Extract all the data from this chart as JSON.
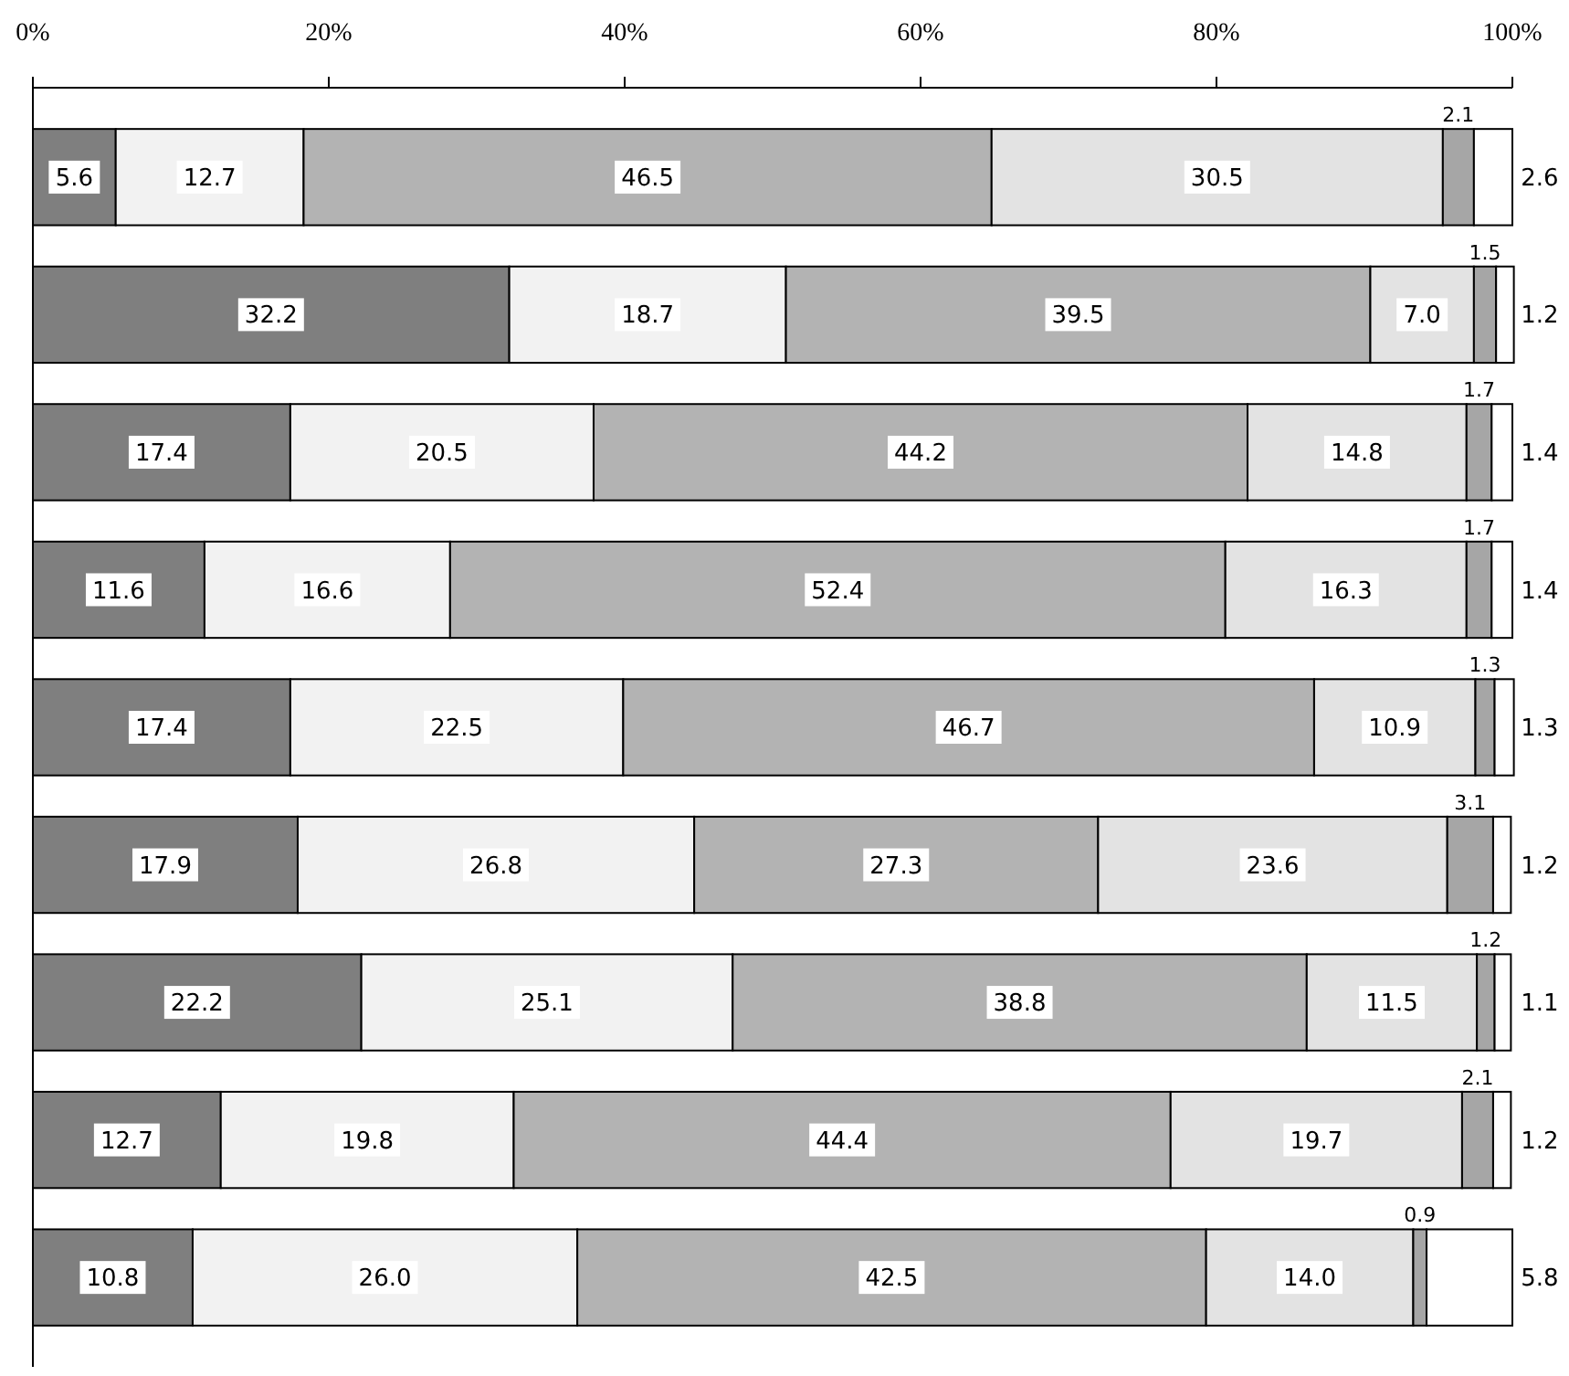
{
  "chart_data": {
    "type": "bar",
    "orientation": "horizontal",
    "stacked": true,
    "categories": [
      null,
      null,
      null,
      null,
      null,
      null,
      null,
      null,
      null
    ],
    "xlim": [
      0,
      100
    ],
    "xticks": [
      {
        "value": 0,
        "label": "0%"
      },
      {
        "value": 20,
        "label": "20%"
      },
      {
        "value": 40,
        "label": "40%"
      },
      {
        "value": 60,
        "label": "60%"
      },
      {
        "value": 80,
        "label": "80%"
      },
      {
        "value": 100,
        "label": "100%"
      }
    ],
    "series": [
      {
        "color": "#7f7f7f",
        "values": [
          5.6,
          32.2,
          17.4,
          11.6,
          17.4,
          17.9,
          22.2,
          12.7,
          10.8
        ],
        "value_labels": [
          "5.6",
          "32.2",
          "17.4",
          "11.6",
          "17.4",
          "17.9",
          "22.2",
          "12.7",
          "10.8"
        ]
      },
      {
        "color": "#f2f2f2",
        "values": [
          12.7,
          18.7,
          20.5,
          16.6,
          22.5,
          26.8,
          25.1,
          19.8,
          26.0
        ],
        "value_labels": [
          "12.7",
          "18.7",
          "20.5",
          "16.6",
          "22.5",
          "26.8",
          "25.1",
          "19.8",
          "26.0"
        ]
      },
      {
        "color": "#b3b3b3",
        "values": [
          46.5,
          39.5,
          44.2,
          52.4,
          46.7,
          27.3,
          38.8,
          44.4,
          42.5
        ],
        "value_labels": [
          "46.5",
          "39.5",
          "44.2",
          "52.4",
          "46.7",
          "27.3",
          "38.8",
          "44.4",
          "42.5"
        ]
      },
      {
        "color": "#e3e3e3",
        "values": [
          30.5,
          7.0,
          14.8,
          16.3,
          10.9,
          23.6,
          11.5,
          19.7,
          14.0
        ],
        "value_labels": [
          "30.5",
          "7.0",
          "14.8",
          "16.3",
          "10.9",
          "23.6",
          "11.5",
          "19.7",
          "14.0"
        ]
      },
      {
        "color": "#a6a6a6",
        "values": [
          2.1,
          1.5,
          1.7,
          1.7,
          1.3,
          3.1,
          1.2,
          2.1,
          0.9
        ],
        "value_labels": [
          "2.1",
          "1.5",
          "1.7",
          "1.7",
          "1.3",
          "3.1",
          "1.2",
          "2.1",
          "0.9"
        ]
      },
      {
        "color": "#ffffff",
        "values": [
          2.6,
          1.2,
          1.4,
          1.4,
          1.3,
          1.2,
          1.1,
          1.2,
          5.8
        ],
        "value_labels": [
          "2.6",
          "1.2",
          "1.4",
          "1.4",
          "1.3",
          "1.2",
          "1.1",
          "1.2",
          "5.8"
        ]
      }
    ]
  }
}
